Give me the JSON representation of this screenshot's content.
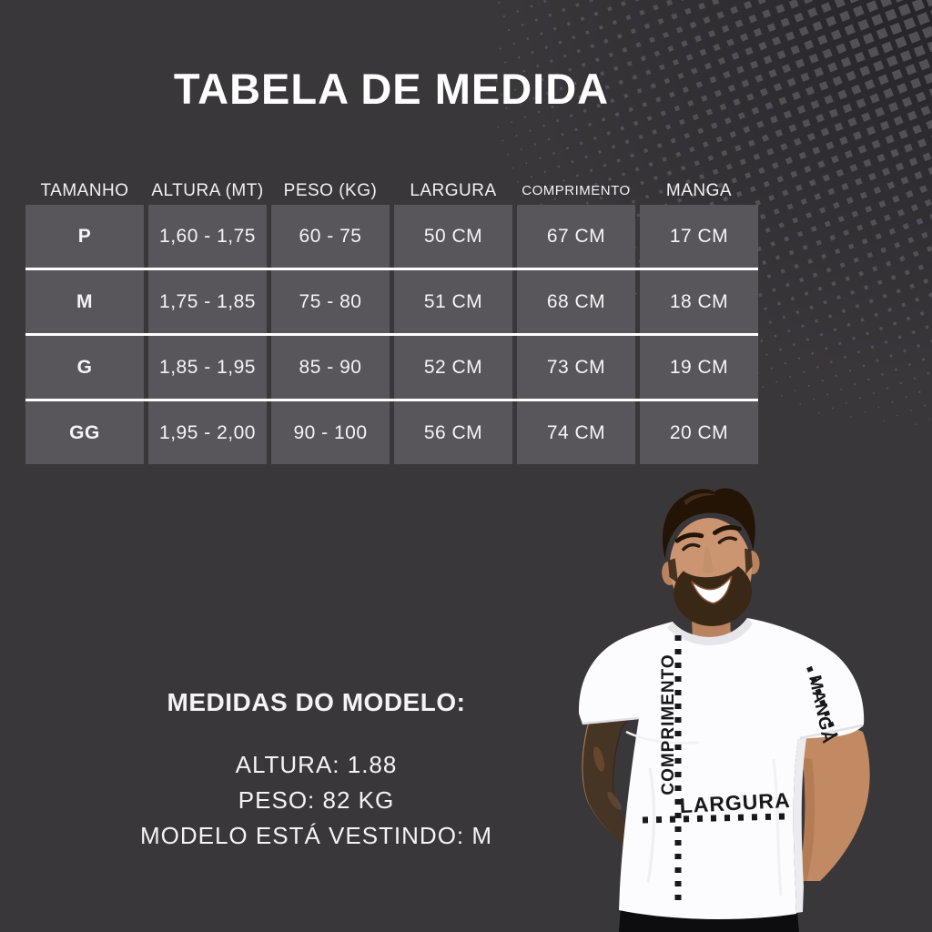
{
  "title": "TABELA DE MEDIDA",
  "table": {
    "headers": [
      "TAMANHO",
      "ALTURA (MT)",
      "PESO (KG)",
      "LARGURA",
      "COMPRIMENTO",
      "MANGA"
    ],
    "rows": [
      {
        "tamanho": "P",
        "altura": "1,60 - 1,75",
        "peso": "60 - 75",
        "largura": "50 CM",
        "comprimento": "67 CM",
        "manga": "17 CM"
      },
      {
        "tamanho": "M",
        "altura": "1,75 - 1,85",
        "peso": "75 - 80",
        "largura": "51 CM",
        "comprimento": "68 CM",
        "manga": "18 CM"
      },
      {
        "tamanho": "G",
        "altura": "1,85 - 1,95",
        "peso": "85 - 90",
        "largura": "52 CM",
        "comprimento": "73 CM",
        "manga": "19 CM"
      },
      {
        "tamanho": "GG",
        "altura": "1,95 - 2,00",
        "peso": "90 - 100",
        "largura": "56 CM",
        "comprimento": "74 CM",
        "manga": "20 CM"
      }
    ]
  },
  "model_info": {
    "heading": "MEDIDAS DO MODELO:",
    "lines": [
      "ALTURA: 1.88",
      "PESO: 82 KG",
      "MODELO ESTÁ VESTINDO: M"
    ]
  },
  "photo_labels": {
    "comprimento": "COMPRIMENTO",
    "largura": "LARGURA",
    "manga": "MANGA"
  },
  "colors": {
    "background": "#3a373b",
    "cell_background": "#58565a",
    "row_separator": "#ffffff",
    "text": "#f4f3f5",
    "title": "#ffffff",
    "halftone_dot": "#525055",
    "shirt": "#fcfcfe",
    "measure_line": "#18181b",
    "pants": "#0d0d10"
  }
}
